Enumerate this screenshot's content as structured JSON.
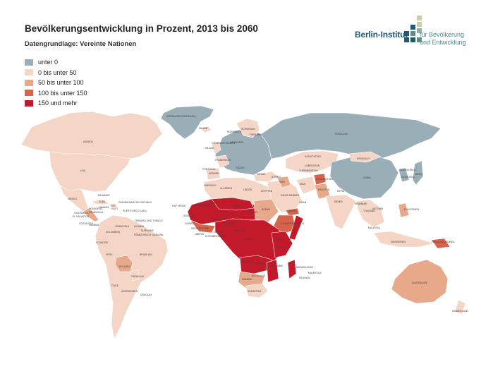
{
  "title": "Bevölkerungsentwicklung in Prozent, 2013 bis 2060",
  "subtitle": "Datengrundlage: Vereinte Nationen",
  "logo": {
    "name": "Berlin-Institut",
    "tagline_1": "für Bevölkerung",
    "tagline_2": "und Entwicklung"
  },
  "legend": [
    {
      "label": "unter 0",
      "color": "#9aaeb8"
    },
    {
      "label": "0 bis unter 50",
      "color": "#f4d5c6"
    },
    {
      "label": "50 bis unter 100",
      "color": "#e8a88a"
    },
    {
      "label": "100 bis unter 150",
      "color": "#d8634a"
    },
    {
      "label": "150 und mehr",
      "color": "#c21a2a"
    }
  ],
  "map_labels": [
    "GRÖNLAND (DÄNEMARK)",
    "ISLAND",
    "KANADA",
    "USA",
    "MEXIKO",
    "BAHAMAS",
    "KUBA",
    "GUATEMALA",
    "EL SALVADOR",
    "HONDURAS",
    "NICARAGUA",
    "COSTA RICA",
    "PANAMA",
    "JAMAIKA",
    "HAITI",
    "DOMINIKANISCHE REPUBLIK",
    "PUERTO RICO (USA)",
    "TRINIDAD UND TOBAGO",
    "VENEZUELA",
    "KOLUMBIEN",
    "GUYANA",
    "SURINAME",
    "FRANZÖSISCH GUAYANA",
    "ECUADOR",
    "PERU",
    "BRASILIEN",
    "BOLIVIEN",
    "PARAGUAY",
    "CHILE",
    "ARGENTINIEN",
    "URUGUAY",
    "NORWEGEN",
    "SCHWEDEN",
    "FINNLAND",
    "IRLAND",
    "GROSSBRITANNIEN",
    "DÄNEMARK",
    "FRANKREICH",
    "SPANIEN",
    "PORTUGAL",
    "ITALIEN",
    "RUSSLAND",
    "KASACHSTAN",
    "USBEKISTAN",
    "TURKMENISTAN",
    "AFGHANISTAN",
    "IRAN",
    "IRAK",
    "SYRIEN",
    "TÜRKEI",
    "SAUDI-ARABIEN",
    "JEMEN",
    "OMAN",
    "PAKISTAN",
    "INDIEN",
    "NEPAL",
    "CHINA",
    "MONGOLEI",
    "NORDKOREA",
    "SÜDKOREA",
    "JAPAN",
    "MYANMAR",
    "THAILAND",
    "VIETNAM",
    "PHILIPPINEN",
    "MALAYSIA",
    "INDONESIEN",
    "PAPUA-NEUGUINEA",
    "AUSTRALIEN",
    "NEUSEELAND",
    "MAROKKO",
    "ALGERIEN",
    "LIBYEN",
    "ÄGYPTEN",
    "MAURETANIEN",
    "MALI",
    "NIGER",
    "TSCHAD",
    "SUDAN",
    "ÄTHIOPIEN",
    "SOMALIA",
    "KENIA",
    "NIGERIA",
    "KAMERUN",
    "KONGO",
    "ANGOLA",
    "SAMBIA",
    "NAMIBIA",
    "BOTSUANA",
    "SÜDAFRIKA",
    "MOSAMBIK",
    "MADAGASKAR",
    "MAURITIUS",
    "RÉUNION",
    "TANSANIA",
    "KAP VERDE",
    "SENEGAL",
    "GUINEA",
    "SIERRA LEONE",
    "LIBERIA",
    "ELFENBEINKÜSTE",
    "GHANA",
    "BURKINA FASO"
  ]
}
